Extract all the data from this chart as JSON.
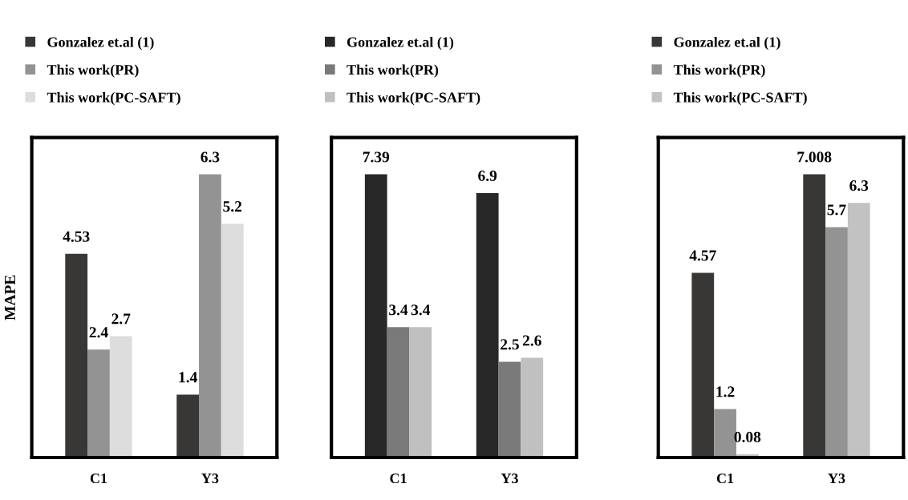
{
  "chart_data": [
    {
      "type": "bar",
      "ylabel": "MAPE",
      "categories": [
        "C1",
        "Y3"
      ],
      "data_labels": true,
      "legend": "top left",
      "tick_labels": "x",
      "grid": false,
      "series": [
        {
          "name": "Gonzalez et.al (1)",
          "color": "#383735",
          "values": [
            4.53,
            1.4
          ]
        },
        {
          "name": "This work(PR)",
          "color": "#939393",
          "values": [
            2.4,
            6.3
          ]
        },
        {
          "name": "This work(PC-SAFT)",
          "color": "#dcdddc",
          "values": [
            2.7,
            5.2
          ]
        }
      ]
    },
    {
      "type": "bar",
      "categories": [
        "C1",
        "Y3"
      ],
      "data_labels": true,
      "legend": "top left",
      "tick_labels": "x",
      "grid": false,
      "series": [
        {
          "name": "Gonzalez et.al (1)",
          "color": "#282828",
          "values": [
            7.39,
            6.9
          ]
        },
        {
          "name": "This work(PR)",
          "color": "#7a7a7a",
          "values": [
            3.4,
            2.5
          ]
        },
        {
          "name": "This work(PC-SAFT)",
          "color": "#c0c0c0",
          "values": [
            3.4,
            2.6
          ]
        }
      ]
    },
    {
      "type": "bar",
      "categories": [
        "C1",
        "Y3"
      ],
      "data_labels": true,
      "legend": "top left",
      "tick_labels": "x",
      "grid": false,
      "series": [
        {
          "name": "Gonzalez et.al (1)",
          "color": "#383735",
          "values": [
            4.57,
            7.008
          ]
        },
        {
          "name": "This work(PR)",
          "color": "#939393",
          "values": [
            1.2,
            5.7
          ]
        },
        {
          "name": "This work(PC-SAFT)",
          "color": "#c2c2c2",
          "values": [
            0.08,
            6.3
          ]
        }
      ]
    }
  ]
}
